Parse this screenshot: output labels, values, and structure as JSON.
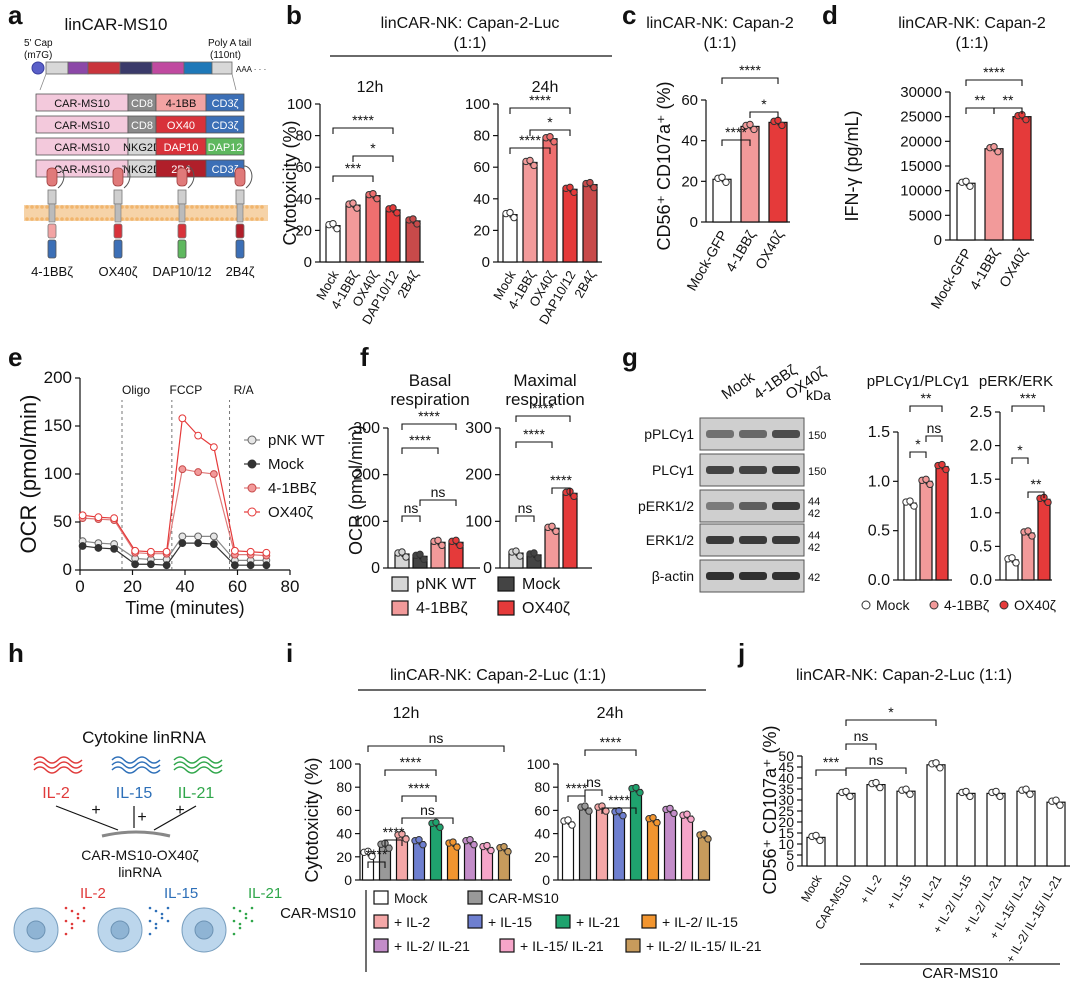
{
  "colors": {
    "white": "#ffffff",
    "light": "#f29a9a",
    "mid": "#ee6f6f",
    "dark": "#e53a3a",
    "grey": "#d6d6d6",
    "black": "#333333",
    "il2": "#f4a7a7",
    "il15": "#6e7fd0",
    "il21": "#1fa36e",
    "il2_15": "#f2952f",
    "il2_21": "#c38dc9",
    "il15_21": "#f6a5c9",
    "il2_15_21": "#c79b5c"
  },
  "panel_labels": [
    "a",
    "b",
    "c",
    "d",
    "e",
    "f",
    "g",
    "h",
    "i",
    "j"
  ],
  "panel_a": {
    "title": "linCAR-MS10",
    "cap": "5' Cap",
    "cap_sub": "(m7G)",
    "polya": "Poly A tail",
    "polya_sub": "(110nt)",
    "aaa": "AAA · · ·",
    "constructs": [
      {
        "seg": [
          "CAR-MS10",
          "CD8",
          "4-1BB",
          "CD3ζ"
        ]
      },
      {
        "seg": [
          "CAR-MS10",
          "CD8",
          "OX40",
          "CD3ζ"
        ]
      },
      {
        "seg": [
          "CAR-MS10",
          "NKG2D",
          "DAP10",
          "DAP12"
        ]
      },
      {
        "seg": [
          "CAR-MS10",
          "NKG2D",
          "2B4",
          "CD3ζ"
        ]
      }
    ],
    "receptor_labels": [
      "4-1BBζ",
      "OX40ζ",
      "DAP10/12",
      "2B4ζ"
    ]
  },
  "chart_data": [
    {
      "id": "b",
      "type": "bar",
      "title": "linCAR-NK: Capan-2-Luc",
      "subtitle": "(1:1)",
      "ylabel": "Cytotoxicity (%)",
      "ylim": [
        0,
        100
      ],
      "yticks": [
        0,
        20,
        40,
        60,
        80,
        100
      ],
      "subplots": [
        {
          "label": "12h",
          "categories": [
            "Mock",
            "4-1BBζ",
            "OX40ζ",
            "DAP10/12",
            "2B4ζ"
          ],
          "values": [
            23,
            36,
            42,
            33,
            26
          ]
        },
        {
          "label": "24h",
          "categories": [
            "Mock",
            "4-1BBζ",
            "OX40ζ",
            "DAP10/12",
            "2B4ζ"
          ],
          "values": [
            30,
            63,
            78,
            46,
            49
          ]
        }
      ],
      "significance": [
        "****",
        "***",
        "*",
        "****",
        "****",
        "*"
      ]
    },
    {
      "id": "c",
      "type": "bar",
      "title": "linCAR-NK: Capan-2",
      "subtitle": "(1:1)",
      "ylabel": "CD56⁺ CD107a⁺ (%)",
      "ylim": [
        0,
        60
      ],
      "yticks": [
        0,
        20,
        40,
        60
      ],
      "categories": [
        "Mock-GFP",
        "4-1BBζ",
        "OX40ζ"
      ],
      "values": [
        21,
        47,
        49
      ],
      "significance": [
        "****",
        "****",
        "*"
      ]
    },
    {
      "id": "d",
      "type": "bar",
      "title": "linCAR-NK: Capan-2",
      "subtitle": "(1:1)",
      "ylabel": "IFN-γ (pg/mL)",
      "ylim": [
        0,
        30000
      ],
      "yticks": [
        0,
        5000,
        10000,
        15000,
        20000,
        25000,
        30000
      ],
      "categories": [
        "Mock-GFP",
        "4-1BBζ",
        "OX40ζ"
      ],
      "values": [
        11500,
        18500,
        25000
      ],
      "significance": [
        "****",
        "**",
        "**"
      ]
    },
    {
      "id": "e",
      "type": "line",
      "ylabel": "OCR (pmol/min)",
      "xlabel": "Time (minutes)",
      "xlim": [
        0,
        80
      ],
      "ylim": [
        0,
        200
      ],
      "xticks": [
        0,
        20,
        40,
        60,
        80
      ],
      "yticks": [
        0,
        50,
        100,
        150,
        200
      ],
      "annotations": [
        {
          "text": "Oligo",
          "x": 16
        },
        {
          "text": "FCCP",
          "x": 35
        },
        {
          "text": "R/A",
          "x": 57
        }
      ],
      "x": [
        1,
        7,
        13,
        21,
        27,
        33,
        39,
        45,
        51,
        59,
        65,
        71
      ],
      "series": [
        {
          "name": "pNK WT",
          "values": [
            30,
            28,
            27,
            12,
            11,
            11,
            35,
            35,
            35,
            10,
            10,
            10
          ]
        },
        {
          "name": "Mock",
          "values": [
            25,
            23,
            22,
            6,
            6,
            5,
            28,
            28,
            27,
            5,
            5,
            5
          ]
        },
        {
          "name": "4-1BBζ",
          "values": [
            54,
            53,
            52,
            18,
            17,
            17,
            105,
            102,
            100,
            16,
            16,
            15
          ]
        },
        {
          "name": "OX40ζ",
          "values": [
            57,
            55,
            54,
            20,
            19,
            19,
            158,
            140,
            128,
            20,
            19,
            18
          ]
        }
      ]
    },
    {
      "id": "f",
      "type": "bar",
      "ylabel": "OCR (pmol/min)",
      "ylim": [
        0,
        300
      ],
      "yticks": [
        0,
        100,
        200,
        300
      ],
      "subplots": [
        {
          "label": "Basal respiration",
          "categories": [
            "pNK WT",
            "Mock",
            "4-1BBζ",
            "OX40ζ"
          ],
          "values": [
            30,
            25,
            55,
            55
          ]
        },
        {
          "label": "Maximal respiration",
          "categories": [
            "pNK WT",
            "Mock",
            "4-1BBζ",
            "OX40ζ"
          ],
          "values": [
            32,
            28,
            85,
            160
          ]
        }
      ],
      "significance_basal": [
        "****",
        "****",
        "ns",
        "ns"
      ],
      "significance_max": [
        "****",
        "****",
        "ns",
        "****"
      ],
      "legend": [
        "pNK WT",
        "Mock",
        "4-1BBζ",
        "OX40ζ"
      ]
    },
    {
      "id": "g",
      "type": "bar",
      "subplots": [
        {
          "label": "pPLCγ1/PLCγ1",
          "ylim": [
            0,
            1.5
          ],
          "yticks": [
            0.0,
            0.5,
            1.0,
            1.5
          ],
          "categories": [
            "Mock",
            "4-1BBζ",
            "OX40ζ"
          ],
          "values": [
            0.78,
            1.0,
            1.15
          ],
          "significance": [
            "**",
            "*",
            "ns"
          ]
        },
        {
          "label": "pERK/ERK",
          "ylim": [
            0,
            2.5
          ],
          "yticks": [
            0.0,
            0.5,
            1.0,
            1.5,
            2.0,
            2.5
          ],
          "categories": [
            "Mock",
            "4-1BBζ",
            "OX40ζ"
          ],
          "values": [
            0.3,
            0.7,
            1.2
          ],
          "significance": [
            "***",
            "*",
            "**"
          ]
        }
      ],
      "legend": [
        "Mock",
        "4-1BBζ",
        "OX40ζ"
      ]
    },
    {
      "id": "i",
      "type": "bar",
      "title": "linCAR-NK: Capan-2-Luc (1:1)",
      "ylabel": "Cytotoxicity (%)",
      "ylim": [
        0,
        100
      ],
      "yticks": [
        0,
        20,
        40,
        60,
        80,
        100
      ],
      "subplots": [
        {
          "label": "12h",
          "categories": [
            "Mock",
            "CAR-MS10",
            "+ IL-2",
            "+ IL-15",
            "+ IL-21",
            "+ IL-2/ IL-15",
            "+ IL-2/ IL-21",
            "+ IL-15/ IL-21",
            "+ IL-2/ IL-15/ IL-21"
          ],
          "values": [
            23,
            30,
            38,
            33,
            48,
            31,
            33,
            28,
            27
          ]
        },
        {
          "label": "24h",
          "categories": [
            "Mock",
            "CAR-MS10",
            "+ IL-2",
            "+ IL-15",
            "+ IL-21",
            "+ IL-2/ IL-15",
            "+ IL-2/ IL-21",
            "+ IL-15/ IL-21",
            "+ IL-2/ IL-15/ IL-21"
          ],
          "values": [
            50,
            62,
            62,
            58,
            78,
            52,
            60,
            55,
            38
          ]
        }
      ],
      "significance_12h": [
        "ns",
        "****",
        "****",
        "ns",
        "****",
        "****"
      ],
      "significance_24h": [
        "****",
        "****",
        "ns",
        "****"
      ]
    },
    {
      "id": "j",
      "type": "bar",
      "title": "linCAR-NK: Capan-2-Luc (1:1)",
      "ylabel": "CD56⁺ CD107a⁺ (%)",
      "ylim": [
        0,
        50
      ],
      "yticks": [
        0,
        5,
        10,
        15,
        20,
        25,
        30,
        35,
        40,
        45,
        50
      ],
      "categories": [
        "Mock",
        "CAR-MS10",
        "+ IL-2",
        "+ IL-15",
        "+ IL-21",
        "+ IL-2/ IL-15",
        "+ IL-2/ IL-21",
        "+ IL-15/ IL-21",
        "+ IL-2/ IL-15/ IL-21"
      ],
      "values": [
        13,
        33,
        37,
        34,
        46,
        33,
        33,
        34,
        29
      ],
      "significance": [
        "*",
        "ns",
        "***",
        "ns"
      ],
      "group_label": "CAR-MS10"
    }
  ],
  "panel_g_blot": {
    "lanes": [
      "Mock",
      "4-1BBζ",
      "OX40ζ"
    ],
    "kda": "kDa",
    "rows": [
      "pPLCγ1",
      "PLCγ1",
      "pERK1/2",
      "ERK1/2",
      "β-actin"
    ],
    "sizes": [
      "150",
      "150",
      "44",
      "42",
      "44",
      "42",
      "42"
    ]
  },
  "panel_h": {
    "title": "Cytokine linRNA",
    "cyto": [
      "IL-2",
      "IL-15",
      "IL-21"
    ],
    "product": "CAR-MS10-OX40ζ",
    "product_sub": "linRNA"
  },
  "panel_i_legend": {
    "group": "CAR-MS10",
    "items": [
      "Mock",
      "CAR-MS10",
      "+ IL-2",
      "+ IL-15",
      "+ IL-21",
      "+ IL-2/ IL-15",
      "+ IL-2/ IL-21",
      "+ IL-15/ IL-21",
      "+ IL-2/ IL-15/ IL-21"
    ]
  }
}
